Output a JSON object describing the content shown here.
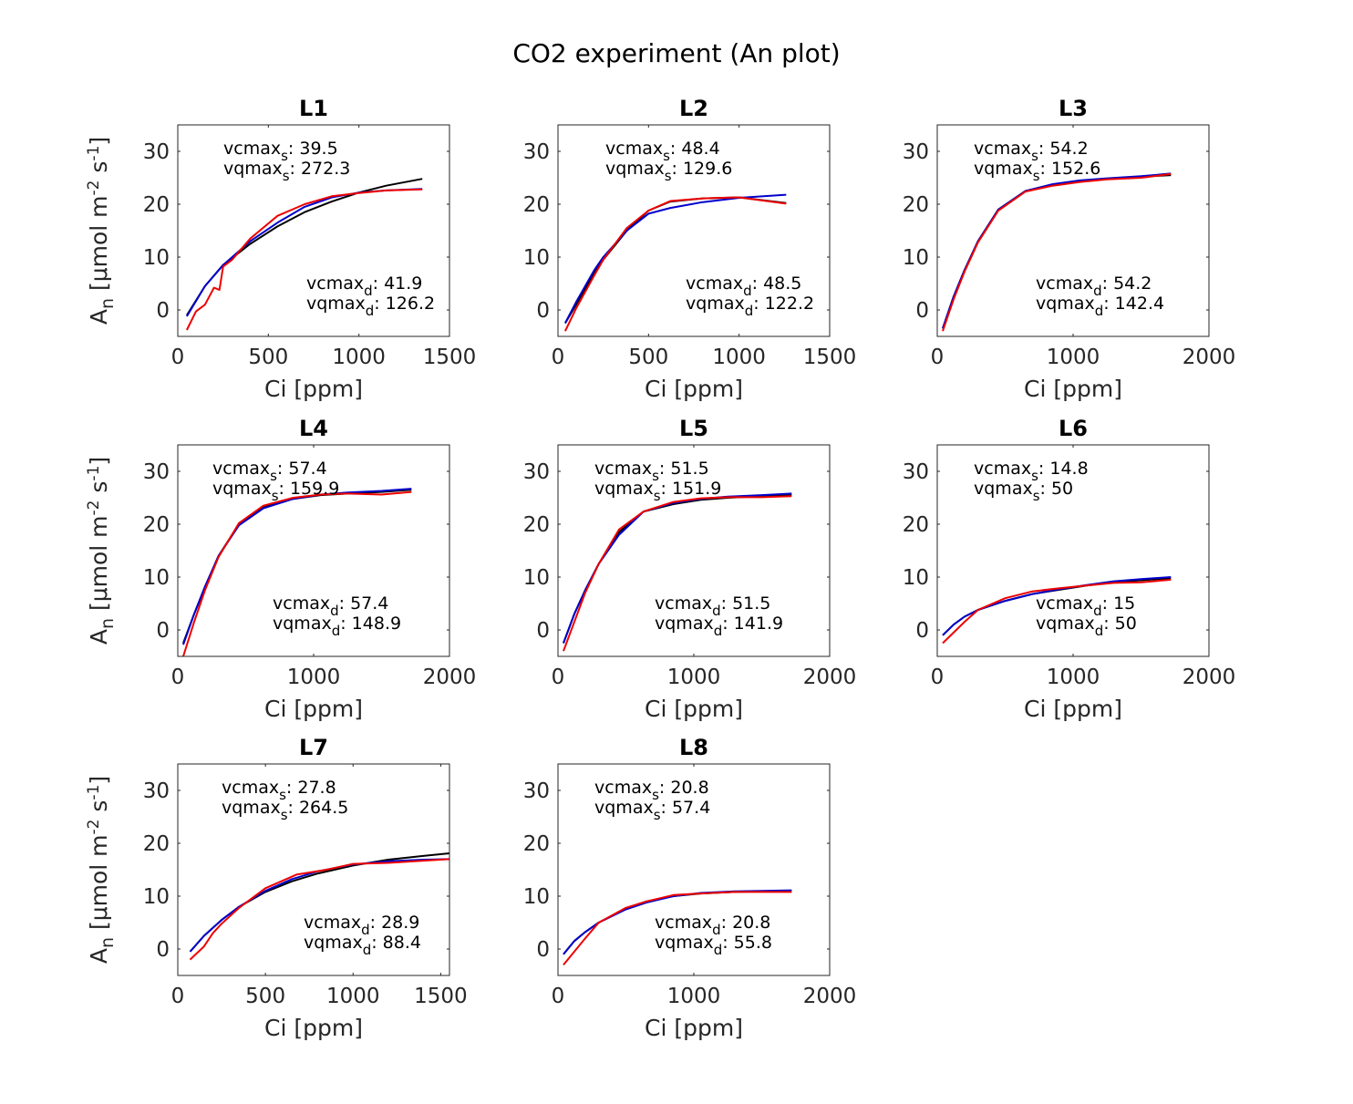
{
  "figure_title": "CO2 experiment (An plot)",
  "chart_data": [
    {
      "type": "line",
      "title": "L1",
      "xlabel": "Ci [ppm]",
      "ylabel": "A_n [μmol m^-2 s^-1]",
      "xlim": [
        0,
        1500
      ],
      "ylim": [
        -5,
        35
      ],
      "xticks": [
        0,
        500,
        1000,
        1500
      ],
      "yticks": [
        0,
        10,
        20,
        30
      ],
      "annotations": {
        "vcmax_s": "39.5",
        "vqmax_s": "272.3",
        "vcmax_d": "41.9",
        "vqmax_d": "126.2"
      },
      "series": [
        {
          "color": "#000000",
          "x": [
            50,
            150,
            250,
            400,
            550,
            700,
            850,
            1000,
            1150,
            1350
          ],
          "y": [
            -1,
            4.5,
            8.5,
            12.5,
            15.8,
            18.5,
            20.5,
            22.2,
            23.5,
            24.8
          ]
        },
        {
          "color": "#0000cc",
          "x": [
            50,
            150,
            250,
            400,
            550,
            700,
            850,
            1000,
            1150,
            1350
          ],
          "y": [
            -1.2,
            4.5,
            8.5,
            13,
            16.5,
            19.5,
            21.3,
            22.2,
            22.6,
            22.9
          ]
        },
        {
          "color": "#ee0000",
          "x": [
            50,
            100,
            150,
            200,
            230,
            250,
            300,
            400,
            550,
            700,
            850,
            1000,
            1150,
            1350
          ],
          "y": [
            -3.8,
            -0.3,
            1,
            4.2,
            3.8,
            8.2,
            9.5,
            13.5,
            17.8,
            20,
            21.5,
            22.1,
            22.6,
            22.8
          ]
        }
      ]
    },
    {
      "type": "line",
      "title": "L2",
      "xlabel": "Ci [ppm]",
      "ylabel": "",
      "xlim": [
        0,
        1500
      ],
      "ylim": [
        -5,
        35
      ],
      "xticks": [
        0,
        500,
        1000,
        1500
      ],
      "yticks": [
        0,
        10,
        20,
        30
      ],
      "annotations": {
        "vcmax_s": "48.4",
        "vqmax_s": "129.6",
        "vcmax_d": "48.5",
        "vqmax_d": "122.2"
      },
      "series": [
        {
          "color": "#000000",
          "x": [
            40,
            100,
            200,
            250,
            380,
            500,
            620,
            800,
            1000,
            1260
          ],
          "y": [
            -2.5,
            1,
            7,
            9.5,
            15,
            18.8,
            20.5,
            21.1,
            21.3,
            20.2
          ]
        },
        {
          "color": "#0000cc",
          "x": [
            40,
            100,
            200,
            250,
            380,
            500,
            620,
            800,
            1000,
            1260
          ],
          "y": [
            -2.5,
            1.5,
            7.5,
            10,
            15,
            18.2,
            19.3,
            20.4,
            21.2,
            21.8
          ]
        },
        {
          "color": "#ee0000",
          "x": [
            40,
            100,
            200,
            250,
            380,
            500,
            620,
            800,
            1000,
            1260
          ],
          "y": [
            -4,
            0.3,
            6.5,
            9.5,
            15.5,
            18.8,
            20.6,
            21.1,
            21.3,
            20.1
          ]
        }
      ]
    },
    {
      "type": "line",
      "title": "L3",
      "xlabel": "Ci [ppm]",
      "ylabel": "",
      "xlim": [
        0,
        2000
      ],
      "ylim": [
        -5,
        35
      ],
      "xticks": [
        0,
        1000,
        2000
      ],
      "yticks": [
        0,
        10,
        20,
        30
      ],
      "annotations": {
        "vcmax_s": "54.2",
        "vqmax_s": "152.6",
        "vcmax_d": "54.2",
        "vqmax_d": "142.4"
      },
      "series": [
        {
          "color": "#000000",
          "x": [
            40,
            120,
            200,
            300,
            450,
            650,
            850,
            1050,
            1250,
            1500,
            1720
          ],
          "y": [
            -3.5,
            2.5,
            7.5,
            13,
            19,
            22.5,
            23.7,
            24.4,
            24.8,
            25.2,
            25.5
          ]
        },
        {
          "color": "#0000cc",
          "x": [
            40,
            120,
            200,
            300,
            450,
            650,
            850,
            1050,
            1250,
            1500,
            1720
          ],
          "y": [
            -3.5,
            2.5,
            7.5,
            13,
            19,
            22.5,
            23.8,
            24.5,
            24.9,
            25.3,
            25.8
          ]
        },
        {
          "color": "#ee0000",
          "x": [
            40,
            120,
            200,
            300,
            450,
            650,
            850,
            1050,
            1250,
            1500,
            1720
          ],
          "y": [
            -4,
            2,
            7.2,
            12.8,
            18.8,
            22.4,
            23.5,
            24.2,
            24.7,
            25,
            25.7
          ]
        }
      ]
    },
    {
      "type": "line",
      "title": "L4",
      "xlabel": "Ci [ppm]",
      "ylabel": "A_n [μmol m^-2 s^-1]",
      "xlim": [
        0,
        2000
      ],
      "ylim": [
        -5,
        35
      ],
      "xticks": [
        0,
        1000,
        2000
      ],
      "yticks": [
        0,
        10,
        20,
        30
      ],
      "annotations": {
        "vcmax_s": "57.4",
        "vqmax_s": "159.9",
        "vcmax_d": "57.4",
        "vqmax_d": "148.9"
      },
      "series": [
        {
          "color": "#000000",
          "x": [
            40,
            120,
            200,
            300,
            450,
            630,
            850,
            1050,
            1250,
            1500,
            1720
          ],
          "y": [
            -2.5,
            3,
            8,
            14,
            20,
            23.2,
            24.8,
            25.5,
            25.8,
            26.1,
            26.5
          ]
        },
        {
          "color": "#0000cc",
          "x": [
            40,
            120,
            200,
            300,
            450,
            630,
            850,
            1050,
            1250,
            1500,
            1720
          ],
          "y": [
            -2.8,
            3,
            8.2,
            14,
            19.8,
            23,
            24.8,
            25.6,
            26,
            26.3,
            26.7
          ]
        },
        {
          "color": "#ee0000",
          "x": [
            40,
            120,
            200,
            300,
            450,
            630,
            850,
            1050,
            1250,
            1500,
            1720
          ],
          "y": [
            -5,
            1.5,
            7.5,
            13.8,
            20.2,
            23.5,
            25,
            25.6,
            25.8,
            25.6,
            26.1
          ]
        }
      ]
    },
    {
      "type": "line",
      "title": "L5",
      "xlabel": "Ci [ppm]",
      "ylabel": "",
      "xlim": [
        0,
        2000
      ],
      "ylim": [
        -5,
        35
      ],
      "xticks": [
        0,
        1000,
        2000
      ],
      "yticks": [
        0,
        10,
        20,
        30
      ],
      "annotations": {
        "vcmax_s": "51.5",
        "vqmax_s": "151.9",
        "vcmax_d": "51.5",
        "vqmax_d": "141.9"
      },
      "series": [
        {
          "color": "#000000",
          "x": [
            40,
            120,
            200,
            300,
            450,
            630,
            850,
            1050,
            1250,
            1500,
            1720
          ],
          "y": [
            -2.5,
            3,
            7.5,
            12.5,
            18.5,
            22.4,
            23.8,
            24.6,
            25,
            25.3,
            25.6
          ]
        },
        {
          "color": "#0000cc",
          "x": [
            40,
            120,
            200,
            300,
            450,
            630,
            850,
            1050,
            1250,
            1500,
            1720
          ],
          "y": [
            -2.5,
            3,
            7.5,
            12.5,
            18,
            22.4,
            24,
            24.8,
            25.2,
            25.5,
            25.8
          ]
        },
        {
          "color": "#ee0000",
          "x": [
            40,
            120,
            200,
            300,
            450,
            630,
            850,
            1050,
            1250,
            1500,
            1720
          ],
          "y": [
            -4,
            1.5,
            7,
            12.5,
            19,
            22.4,
            24.2,
            24.9,
            25.1,
            25.1,
            25.3
          ]
        }
      ]
    },
    {
      "type": "line",
      "title": "L6",
      "xlabel": "Ci [ppm]",
      "ylabel": "",
      "xlim": [
        0,
        2000
      ],
      "ylim": [
        -5,
        35
      ],
      "xticks": [
        0,
        1000,
        2000
      ],
      "yticks": [
        0,
        10,
        20,
        30
      ],
      "annotations": {
        "vcmax_s": "14.8",
        "vqmax_s": "50",
        "vcmax_d": "15",
        "vqmax_d": "50"
      },
      "series": [
        {
          "color": "#000000",
          "x": [
            40,
            120,
            200,
            300,
            500,
            700,
            900,
            1100,
            1300,
            1500,
            1720
          ],
          "y": [
            -1,
            1,
            2.5,
            3.8,
            5.5,
            6.8,
            7.6,
            8.4,
            9,
            9.4,
            9.8
          ]
        },
        {
          "color": "#0000cc",
          "x": [
            40,
            120,
            200,
            300,
            500,
            700,
            900,
            1100,
            1300,
            1500,
            1720
          ],
          "y": [
            -1,
            1,
            2.5,
            3.8,
            5.5,
            6.8,
            7.7,
            8.5,
            9.2,
            9.6,
            10
          ]
        },
        {
          "color": "#ee0000",
          "x": [
            40,
            120,
            200,
            300,
            500,
            700,
            900,
            1100,
            1300,
            1500,
            1720
          ],
          "y": [
            -2.5,
            -0.5,
            1.5,
            3.8,
            6,
            7.3,
            7.9,
            8.4,
            8.9,
            9,
            9.5
          ]
        }
      ]
    },
    {
      "type": "line",
      "title": "L7",
      "xlabel": "Ci [ppm]",
      "ylabel": "A_n [μmol m^-2 s^-1]",
      "xlim": [
        0,
        1550
      ],
      "ylim": [
        -5,
        35
      ],
      "xticks": [
        0,
        500,
        1000,
        1500
      ],
      "yticks": [
        0,
        10,
        20,
        30
      ],
      "annotations": {
        "vcmax_s": "27.8",
        "vqmax_s": "264.5",
        "vcmax_d": "28.9",
        "vqmax_d": "88.4"
      },
      "series": [
        {
          "color": "#000000",
          "x": [
            70,
            150,
            250,
            350,
            500,
            650,
            800,
            1000,
            1200,
            1400,
            1550
          ],
          "y": [
            -0.5,
            2.5,
            5.5,
            8,
            10.8,
            12.8,
            14.3,
            15.8,
            16.9,
            17.6,
            18.1
          ]
        },
        {
          "color": "#0000cc",
          "x": [
            70,
            150,
            250,
            350,
            500,
            650,
            800,
            1000,
            1200,
            1400,
            1550
          ],
          "y": [
            -0.5,
            2.5,
            5.5,
            8,
            11,
            13.2,
            14.7,
            16,
            16.6,
            16.9,
            17
          ]
        },
        {
          "color": "#ee0000",
          "x": [
            70,
            150,
            200,
            250,
            350,
            500,
            680,
            850,
            1000,
            1200,
            1400,
            1550
          ],
          "y": [
            -2,
            0.5,
            3,
            4.8,
            7.8,
            11.5,
            14.1,
            15,
            16.1,
            16.3,
            16.7,
            17
          ]
        }
      ]
    },
    {
      "type": "line",
      "title": "L8",
      "xlabel": "Ci [ppm]",
      "ylabel": "",
      "xlim": [
        0,
        2000
      ],
      "ylim": [
        -5,
        35
      ],
      "xticks": [
        0,
        1000,
        2000
      ],
      "yticks": [
        0,
        10,
        20,
        30
      ],
      "annotations": {
        "vcmax_s": "20.8",
        "vqmax_s": "57.4",
        "vcmax_d": "20.8",
        "vqmax_d": "55.8"
      },
      "series": [
        {
          "color": "#000000",
          "x": [
            40,
            120,
            200,
            300,
            500,
            650,
            850,
            1050,
            1300,
            1500,
            1720
          ],
          "y": [
            -1,
            1.5,
            3.2,
            5,
            7.6,
            9,
            10,
            10.5,
            10.8,
            10.9,
            11
          ]
        },
        {
          "color": "#0000cc",
          "x": [
            40,
            120,
            200,
            300,
            500,
            650,
            850,
            1050,
            1300,
            1500,
            1720
          ],
          "y": [
            -1,
            1.5,
            3.2,
            5,
            7.5,
            8.8,
            10,
            10.6,
            10.9,
            11,
            11.1
          ]
        },
        {
          "color": "#ee0000",
          "x": [
            40,
            120,
            200,
            300,
            500,
            650,
            850,
            1050,
            1300,
            1500,
            1720
          ],
          "y": [
            -3,
            -0.5,
            2,
            5,
            7.8,
            9,
            10.2,
            10.5,
            10.8,
            10.8,
            10.8
          ]
        }
      ]
    }
  ]
}
